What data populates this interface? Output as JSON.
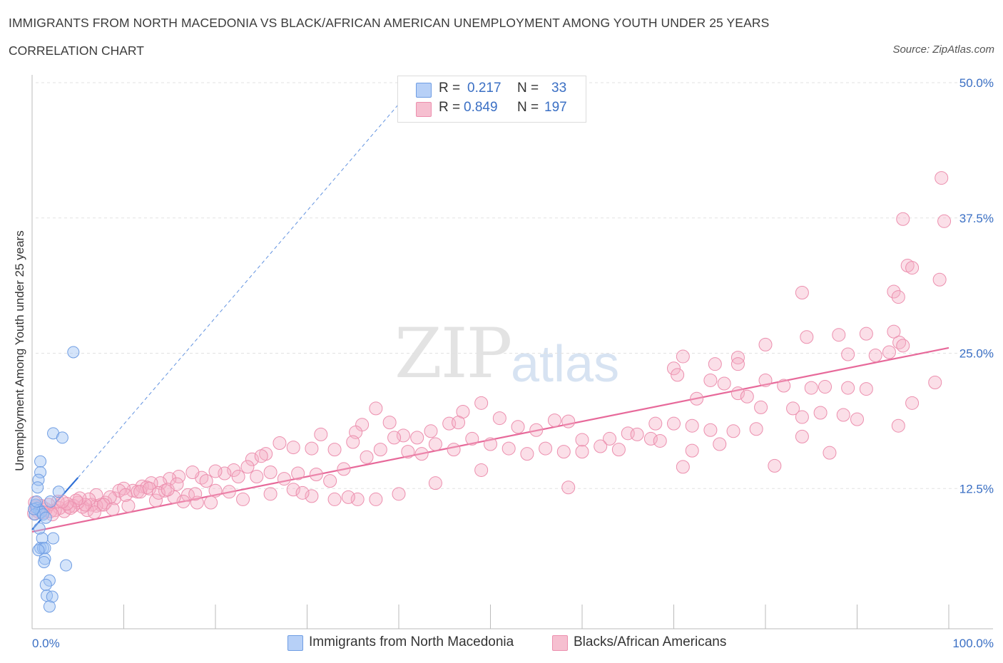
{
  "header": {
    "title": "IMMIGRANTS FROM NORTH MACEDONIA VS BLACK/AFRICAN AMERICAN UNEMPLOYMENT AMONG YOUTH UNDER 25 YEARS",
    "subtitle": "CORRELATION CHART",
    "source": "Source: ZipAtlas.com"
  },
  "watermark": {
    "zip": "ZIP",
    "atlas": "atlas"
  },
  "legend": {
    "rows": [
      {
        "r_label": "R = ",
        "r_value": "0.217",
        "n_label": "N = ",
        "n_value": "33",
        "color": "#b7d0f7"
      },
      {
        "r_label": "R = ",
        "r_value": "0.849",
        "n_label": "N = ",
        "n_value": "197",
        "color": "#f6bfd0"
      }
    ]
  },
  "bottom_legend": [
    {
      "label": "Immigrants from North Macedonia",
      "color": "#b7d0f7"
    },
    {
      "label": "Blacks/African Americans",
      "color": "#f6bfd0"
    }
  ],
  "colors": {
    "blue_fill": "rgba(160,195,245,0.45)",
    "blue_stroke": "#6f9de3",
    "blue_line": "#2e6fd6",
    "pink_fill": "rgba(246,175,198,0.40)",
    "pink_stroke": "#ec8fae",
    "pink_line": "#e7699a",
    "tick_text": "#3a6fc4",
    "grid": "#e2e2e2"
  },
  "chart_data": {
    "type": "scatter",
    "title": "IMMIGRANTS FROM NORTH MACEDONIA VS BLACK/AFRICAN AMERICAN UNEMPLOYMENT AMONG YOUTH UNDER 25 YEARS",
    "xlabel": "",
    "ylabel": "Unemployment Among Youth under 25 years",
    "xlim": [
      0,
      100
    ],
    "ylim": [
      0,
      50
    ],
    "x_tick_labels": [
      {
        "value": 0,
        "label": "0.0%"
      },
      {
        "value": 100,
        "label": "100.0%"
      }
    ],
    "y_tick_labels": [
      {
        "value": 12.5,
        "label": "12.5%"
      },
      {
        "value": 25,
        "label": "25.0%"
      },
      {
        "value": 37.5,
        "label": "37.5%"
      },
      {
        "value": 50,
        "label": "50.0%"
      }
    ],
    "series": [
      {
        "name": "Immigrants from North Macedonia",
        "R": 0.217,
        "N": 33,
        "trend": {
          "x0": 0,
          "y0": 8.7,
          "x1": 5,
          "y1": 13.5,
          "dashed_to_x": 42,
          "dashed_to_y": 50
        },
        "points": [
          [
            4.5,
            25.1
          ],
          [
            2.3,
            17.6
          ],
          [
            3.3,
            17.2
          ],
          [
            0.9,
            15.0
          ],
          [
            0.9,
            14.0
          ],
          [
            0.7,
            13.3
          ],
          [
            0.6,
            12.6
          ],
          [
            2.9,
            12.2
          ],
          [
            2.0,
            11.3
          ],
          [
            0.4,
            11.0
          ],
          [
            0.5,
            10.7
          ],
          [
            0.8,
            10.5
          ],
          [
            1.0,
            10.3
          ],
          [
            0.3,
            10.1
          ],
          [
            1.2,
            10.1
          ],
          [
            1.5,
            9.8
          ],
          [
            0.8,
            8.8
          ],
          [
            1.1,
            7.9
          ],
          [
            2.3,
            7.9
          ],
          [
            0.9,
            7.0
          ],
          [
            1.2,
            7.0
          ],
          [
            1.4,
            7.0
          ],
          [
            0.7,
            6.8
          ],
          [
            1.4,
            6.0
          ],
          [
            1.3,
            5.7
          ],
          [
            3.7,
            5.4
          ],
          [
            1.9,
            4.0
          ],
          [
            1.5,
            3.6
          ],
          [
            1.6,
            2.6
          ],
          [
            2.2,
            2.5
          ],
          [
            1.9,
            1.6
          ],
          [
            0.2,
            10.6
          ],
          [
            0.5,
            11.3
          ]
        ]
      },
      {
        "name": "Blacks/African Americans",
        "R": 0.849,
        "N": 197,
        "trend": {
          "x0": 0,
          "y0": 8.5,
          "x1": 100,
          "y1": 25.5
        },
        "points": [
          [
            99.2,
            41.2
          ],
          [
            95.0,
            37.4
          ],
          [
            99.5,
            37.2
          ],
          [
            95.5,
            33.1
          ],
          [
            96.0,
            32.9
          ],
          [
            99.0,
            31.8
          ],
          [
            94.0,
            30.7
          ],
          [
            94.5,
            30.2
          ],
          [
            84.0,
            30.6
          ],
          [
            94.0,
            27.0
          ],
          [
            91.0,
            26.8
          ],
          [
            88.0,
            26.7
          ],
          [
            94.6,
            26.0
          ],
          [
            95.0,
            25.7
          ],
          [
            93.5,
            25.1
          ],
          [
            84.5,
            26.5
          ],
          [
            89.0,
            24.9
          ],
          [
            92.0,
            24.8
          ],
          [
            80.0,
            25.8
          ],
          [
            77.0,
            24.6
          ],
          [
            77.0,
            24.0
          ],
          [
            74.5,
            24.0
          ],
          [
            71.0,
            24.7
          ],
          [
            70.0,
            23.6
          ],
          [
            70.4,
            23.0
          ],
          [
            74.0,
            22.5
          ],
          [
            75.5,
            22.2
          ],
          [
            80.0,
            22.5
          ],
          [
            82.0,
            22.0
          ],
          [
            85.0,
            21.8
          ],
          [
            86.5,
            21.9
          ],
          [
            89.0,
            21.8
          ],
          [
            91.0,
            21.7
          ],
          [
            96.0,
            20.4
          ],
          [
            98.5,
            22.3
          ],
          [
            77.0,
            21.3
          ],
          [
            78.0,
            21.0
          ],
          [
            72.5,
            20.8
          ],
          [
            79.5,
            20.0
          ],
          [
            83.0,
            19.9
          ],
          [
            86.0,
            19.5
          ],
          [
            88.5,
            19.3
          ],
          [
            90.0,
            18.9
          ],
          [
            94.5,
            18.3
          ],
          [
            84.0,
            19.1
          ],
          [
            79.0,
            18.0
          ],
          [
            84.0,
            17.3
          ],
          [
            76.5,
            17.8
          ],
          [
            74.0,
            17.9
          ],
          [
            72.0,
            18.3
          ],
          [
            70.0,
            18.5
          ],
          [
            68.0,
            18.5
          ],
          [
            65.0,
            17.6
          ],
          [
            67.5,
            17.1
          ],
          [
            63.0,
            17.1
          ],
          [
            60.0,
            17.0
          ],
          [
            58.5,
            18.7
          ],
          [
            57.0,
            18.8
          ],
          [
            55.0,
            17.9
          ],
          [
            53.0,
            18.2
          ],
          [
            51.0,
            19.0
          ],
          [
            49.0,
            20.4
          ],
          [
            47.0,
            19.6
          ],
          [
            45.5,
            18.5
          ],
          [
            43.5,
            17.8
          ],
          [
            46.5,
            18.6
          ],
          [
            42.0,
            17.2
          ],
          [
            40.5,
            17.4
          ],
          [
            39.5,
            17.2
          ],
          [
            39.0,
            18.6
          ],
          [
            37.5,
            19.9
          ],
          [
            36.0,
            18.4
          ],
          [
            35.3,
            17.7
          ],
          [
            35.0,
            16.8
          ],
          [
            33.0,
            16.1
          ],
          [
            31.5,
            17.5
          ],
          [
            30.5,
            16.2
          ],
          [
            28.5,
            16.3
          ],
          [
            27.0,
            16.7
          ],
          [
            25.5,
            15.7
          ],
          [
            24.0,
            15.2
          ],
          [
            23.5,
            14.5
          ],
          [
            22.0,
            14.2
          ],
          [
            21.0,
            13.9
          ],
          [
            20.0,
            14.1
          ],
          [
            18.5,
            13.5
          ],
          [
            17.5,
            14.0
          ],
          [
            16.0,
            13.6
          ],
          [
            15.0,
            13.4
          ],
          [
            14.0,
            13.0
          ],
          [
            13.0,
            13.0
          ],
          [
            12.0,
            12.7
          ],
          [
            11.0,
            12.3
          ],
          [
            10.0,
            12.5
          ],
          [
            9.0,
            11.6
          ],
          [
            8.0,
            11.2
          ],
          [
            7.5,
            11.0
          ],
          [
            7.0,
            10.9
          ],
          [
            6.5,
            11.0
          ],
          [
            6.0,
            10.5
          ],
          [
            5.5,
            10.8
          ],
          [
            5.0,
            11.2
          ],
          [
            4.5,
            10.9
          ],
          [
            4.0,
            10.8
          ],
          [
            3.5,
            10.4
          ],
          [
            3.0,
            10.7
          ],
          [
            2.5,
            10.5
          ],
          [
            2.0,
            10.4
          ],
          [
            1.5,
            10.6
          ],
          [
            1.0,
            10.9
          ],
          [
            0.6,
            10.4
          ],
          [
            0.4,
            10.8
          ],
          [
            0.3,
            11.2
          ],
          [
            0.2,
            10.2
          ],
          [
            25.0,
            15.5
          ],
          [
            23.0,
            11.5
          ],
          [
            21.5,
            12.2
          ],
          [
            20.0,
            12.3
          ],
          [
            19.5,
            11.2
          ],
          [
            18.0,
            11.2
          ],
          [
            17.0,
            11.9
          ],
          [
            16.5,
            11.3
          ],
          [
            15.5,
            11.7
          ],
          [
            14.5,
            12.3
          ],
          [
            13.5,
            11.4
          ],
          [
            12.5,
            12.6
          ],
          [
            11.5,
            12.2
          ],
          [
            10.5,
            10.9
          ],
          [
            9.5,
            12.3
          ],
          [
            8.5,
            11.7
          ],
          [
            7.8,
            11.0
          ],
          [
            7.0,
            11.9
          ],
          [
            6.2,
            11.5
          ],
          [
            5.8,
            11.0
          ],
          [
            5.2,
            11.6
          ],
          [
            4.8,
            11.4
          ],
          [
            4.2,
            10.7
          ],
          [
            3.8,
            11.1
          ],
          [
            2.8,
            11.3
          ],
          [
            1.8,
            11.0
          ],
          [
            1.2,
            10.3
          ],
          [
            2.2,
            10.1
          ],
          [
            3.3,
            11.3
          ],
          [
            6.8,
            10.3
          ],
          [
            8.8,
            10.6
          ],
          [
            10.2,
            11.9
          ],
          [
            11.8,
            12.2
          ],
          [
            12.8,
            12.5
          ],
          [
            13.8,
            12.1
          ],
          [
            14.8,
            12.4
          ],
          [
            15.8,
            12.9
          ],
          [
            17.8,
            12.0
          ],
          [
            19.0,
            13.2
          ],
          [
            22.5,
            13.6
          ],
          [
            24.5,
            13.6
          ],
          [
            26.0,
            14.0
          ],
          [
            27.5,
            13.4
          ],
          [
            29.0,
            13.9
          ],
          [
            31.0,
            13.8
          ],
          [
            32.5,
            13.2
          ],
          [
            34.0,
            14.3
          ],
          [
            36.5,
            15.4
          ],
          [
            38.0,
            16.1
          ],
          [
            41.0,
            15.9
          ],
          [
            42.5,
            15.7
          ],
          [
            44.0,
            16.6
          ],
          [
            46.0,
            16.1
          ],
          [
            48.0,
            17.1
          ],
          [
            50.0,
            16.6
          ],
          [
            52.0,
            16.2
          ],
          [
            54.0,
            15.7
          ],
          [
            56.0,
            16.2
          ],
          [
            58.0,
            15.9
          ],
          [
            60.0,
            15.9
          ],
          [
            62.0,
            16.4
          ],
          [
            64.0,
            16.1
          ],
          [
            66.0,
            17.5
          ],
          [
            68.5,
            16.9
          ],
          [
            72.0,
            16.0
          ],
          [
            75.0,
            16.6
          ],
          [
            81.0,
            14.6
          ],
          [
            87.0,
            15.8
          ],
          [
            71.0,
            14.5
          ],
          [
            58.5,
            12.6
          ],
          [
            49.0,
            14.2
          ],
          [
            44.0,
            13.0
          ],
          [
            40.0,
            12.0
          ],
          [
            37.5,
            11.5
          ],
          [
            35.5,
            11.5
          ],
          [
            33.0,
            11.5
          ],
          [
            30.5,
            11.8
          ],
          [
            28.5,
            12.4
          ],
          [
            26.0,
            12.0
          ],
          [
            29.5,
            12.1
          ],
          [
            34.5,
            11.7
          ]
        ]
      }
    ]
  }
}
